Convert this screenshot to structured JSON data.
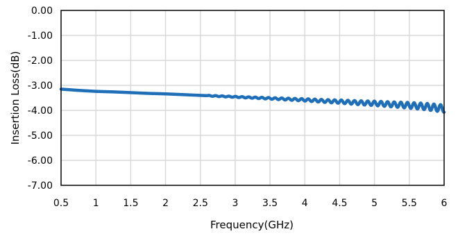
{
  "chart_data": {
    "type": "line",
    "title": "",
    "xlabel": "Frequency(GHz)",
    "ylabel": "Insertion Loss(dB)",
    "xlim": [
      0.5,
      6
    ],
    "ylim": [
      -7,
      0
    ],
    "x_ticks": [
      0.5,
      1,
      1.5,
      2,
      2.5,
      3,
      3.5,
      4,
      4.5,
      5,
      5.5,
      6
    ],
    "x_tick_labels": [
      "0.5",
      "1",
      "1.5",
      "2",
      "2.5",
      "3",
      "3.5",
      "4",
      "4.5",
      "5",
      "5.5",
      "6"
    ],
    "y_ticks": [
      0,
      -1,
      -2,
      -3,
      -4,
      -5,
      -6,
      -7
    ],
    "y_tick_labels": [
      "0.00",
      "-1.00",
      "-2.00",
      "-3.00",
      "-4.00",
      "-5.00",
      "-6.00",
      "-7.00"
    ],
    "grid": true,
    "legend": "none",
    "series": [
      {
        "color": "#1f6fb8",
        "x": [
          0.5,
          0.75,
          1.0,
          1.25,
          1.5,
          1.75,
          2.0,
          2.25,
          2.5,
          2.75,
          3.0,
          3.25,
          3.5,
          3.75,
          4.0,
          4.25,
          4.5,
          4.75,
          5.0,
          5.25,
          5.5,
          5.75,
          6.0
        ],
        "y": [
          -3.15,
          -3.2,
          -3.24,
          -3.26,
          -3.29,
          -3.32,
          -3.34,
          -3.37,
          -3.4,
          -3.43,
          -3.46,
          -3.49,
          -3.52,
          -3.55,
          -3.58,
          -3.62,
          -3.65,
          -3.69,
          -3.72,
          -3.76,
          -3.8,
          -3.85,
          -3.93
        ],
        "ripple_start_x": 2.6,
        "ripple_amplitude_max": 0.13,
        "ripple_period": 0.095
      }
    ]
  }
}
